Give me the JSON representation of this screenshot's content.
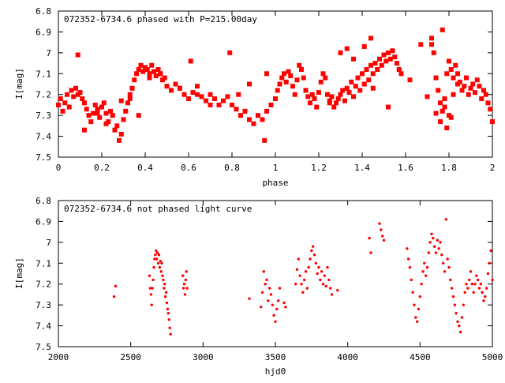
{
  "chart_data": [
    {
      "type": "scatter",
      "title": "072352-6734.6 phased with P=215.00day",
      "xlabel": "phase",
      "ylabel": "I[mag]",
      "xlim": [
        0,
        2
      ],
      "ylim": [
        6.8,
        7.5
      ],
      "y_inverted": true,
      "x_ticks": [
        "0",
        "0.2",
        "0.4",
        "0.6",
        "0.8",
        "1",
        "1.2",
        "1.4",
        "1.6",
        "1.8",
        "2"
      ],
      "y_ticks": [
        "6.8",
        "6.9",
        "7",
        "7.1",
        "7.2",
        "7.3",
        "7.4",
        "7.5"
      ],
      "marker_color": "#ff0000",
      "marker": "filled-square",
      "grid": false,
      "legend": "none",
      "series": [
        {
          "x": [
            0.0,
            0.01,
            0.02,
            0.03,
            0.04,
            0.05,
            0.06,
            0.07,
            0.08,
            0.09,
            0.1,
            0.11,
            0.12,
            0.13,
            0.14,
            0.15,
            0.16,
            0.17,
            0.18,
            0.19,
            0.2,
            0.21,
            0.22,
            0.23,
            0.24,
            0.25,
            0.26,
            0.27,
            0.28,
            0.29,
            0.3,
            0.31,
            0.32,
            0.33,
            0.34,
            0.35,
            0.36,
            0.37,
            0.38,
            0.39,
            0.4,
            0.41,
            0.42,
            0.43,
            0.44,
            0.45,
            0.46,
            0.47,
            0.48,
            0.49,
            0.5,
            0.52,
            0.54,
            0.56,
            0.58,
            0.6,
            0.62,
            0.64,
            0.66,
            0.68,
            0.7,
            0.72,
            0.74,
            0.76,
            0.78,
            0.8,
            0.82,
            0.84,
            0.86,
            0.88,
            0.9,
            0.92,
            0.94,
            0.96,
            0.98,
            0.09,
            0.29,
            0.42,
            0.47,
            0.61,
            0.79,
            0.95,
            0.96,
            0.12,
            0.18,
            0.22,
            0.33,
            0.37,
            0.56,
            0.64,
            0.7,
            0.83,
            0.88
          ],
          "y": [
            7.25,
            7.22,
            7.28,
            7.24,
            7.2,
            7.26,
            7.18,
            7.21,
            7.17,
            7.2,
            7.19,
            7.22,
            7.24,
            7.27,
            7.3,
            7.33,
            7.29,
            7.25,
            7.27,
            7.31,
            7.26,
            7.24,
            7.29,
            7.33,
            7.28,
            7.3,
            7.37,
            7.35,
            7.42,
            7.39,
            7.32,
            7.28,
            7.24,
            7.2,
            7.17,
            7.13,
            7.1,
            7.08,
            7.06,
            7.09,
            7.07,
            7.08,
            7.1,
            7.06,
            7.09,
            7.11,
            7.08,
            7.1,
            7.13,
            7.12,
            7.16,
            7.18,
            7.15,
            7.17,
            7.2,
            7.22,
            7.19,
            7.16,
            7.21,
            7.23,
            7.2,
            7.22,
            7.25,
            7.23,
            7.21,
            7.25,
            7.27,
            7.3,
            7.28,
            7.32,
            7.34,
            7.3,
            7.32,
            7.28,
            7.25,
            7.01,
            7.23,
            7.12,
            7.1,
            7.04,
            7.0,
            7.42,
            7.1,
            7.37,
            7.29,
            7.34,
            7.22,
            7.3,
            7.17,
            7.2,
            7.25,
            7.2,
            7.15
          ]
        },
        {
          "x": [
            1.0,
            1.01,
            1.02,
            1.03,
            1.04,
            1.05,
            1.06,
            1.07,
            1.08,
            1.09,
            1.1,
            1.11,
            1.12,
            1.13,
            1.14,
            1.15,
            1.16,
            1.17,
            1.18,
            1.19,
            1.2,
            1.21,
            1.22,
            1.23,
            1.24,
            1.25,
            1.26,
            1.27,
            1.28,
            1.29,
            1.3,
            1.31,
            1.32,
            1.33,
            1.34,
            1.35,
            1.36,
            1.37,
            1.38,
            1.39,
            1.4,
            1.41,
            1.42,
            1.43,
            1.44,
            1.45,
            1.46,
            1.47,
            1.48,
            1.49,
            1.5,
            1.51,
            1.52,
            1.53,
            1.54,
            1.55,
            1.56,
            1.57,
            1.58,
            1.3,
            1.33,
            1.41,
            1.44,
            1.62,
            1.67,
            1.7,
            1.36,
            1.52,
            1.25,
            1.45
          ],
          "y": [
            7.22,
            7.18,
            7.15,
            7.12,
            7.1,
            7.14,
            7.09,
            7.11,
            7.16,
            7.2,
            7.13,
            7.06,
            7.08,
            7.12,
            7.18,
            7.21,
            7.24,
            7.2,
            7.22,
            7.26,
            7.19,
            7.14,
            7.1,
            7.12,
            7.2,
            7.23,
            7.21,
            7.26,
            7.24,
            7.22,
            7.2,
            7.18,
            7.23,
            7.17,
            7.19,
            7.14,
            7.21,
            7.16,
            7.12,
            7.18,
            7.1,
            7.15,
            7.08,
            7.13,
            7.06,
            7.1,
            7.05,
            7.08,
            7.03,
            7.06,
            7.01,
            7.04,
            7.0,
            7.03,
            6.99,
            7.02,
            7.05,
            7.08,
            7.1,
            7.0,
            6.98,
            6.97,
            6.93,
            7.13,
            6.96,
            7.21,
            7.03,
            7.26,
            7.24,
            7.17
          ]
        },
        {
          "x": [
            1.72,
            1.73,
            1.74,
            1.75,
            1.76,
            1.77,
            1.78,
            1.79,
            1.8,
            1.81,
            1.82,
            1.83,
            1.84,
            1.85,
            1.86,
            1.87,
            1.88,
            1.89,
            1.9,
            1.91,
            1.92,
            1.93,
            1.94,
            1.95,
            1.96,
            1.97,
            1.98,
            1.99,
            2.0,
            1.74,
            1.76,
            1.78,
            1.8,
            1.82,
            1.84,
            1.72,
            1.77,
            1.79,
            1.81
          ],
          "y": [
            6.96,
            7.0,
            7.12,
            7.18,
            7.24,
            7.28,
            7.22,
            7.1,
            7.04,
            7.08,
            7.12,
            7.06,
            7.1,
            7.14,
            7.18,
            7.16,
            7.12,
            7.2,
            7.17,
            7.15,
            7.19,
            7.13,
            7.16,
            7.22,
            7.18,
            7.2,
            7.24,
            7.27,
            7.33,
            7.29,
            7.33,
            7.26,
            7.3,
            7.2,
            7.15,
            6.93,
            6.89,
            7.36,
            7.31
          ]
        }
      ]
    },
    {
      "type": "scatter",
      "title": "072352-6734.6 not phased light curve",
      "xlabel": "hjd0",
      "ylabel": "I[mag]",
      "xlim": [
        2000,
        5000
      ],
      "ylim": [
        6.8,
        7.5
      ],
      "y_inverted": true,
      "x_ticks": [
        "2000",
        "2500",
        "3000",
        "3500",
        "4000",
        "4500",
        "5000"
      ],
      "y_ticks": [
        "6.8",
        "6.9",
        "7",
        "7.1",
        "7.2",
        "7.3",
        "7.4",
        "7.5"
      ],
      "marker_color": "#ff0000",
      "marker": "small-dot",
      "grid": false,
      "legend": "none",
      "series": [
        {
          "x": [
            2385,
            2395,
            2630,
            2635,
            2640,
            2645,
            2650,
            2655,
            2660,
            2665,
            2670,
            2675,
            2680,
            2685,
            2690,
            2695,
            2700,
            2705,
            2710,
            2715,
            2720,
            2725,
            2730,
            2735,
            2740,
            2745,
            2750,
            2755,
            2760,
            2765,
            2770,
            2775,
            2860,
            2865,
            2870,
            2875,
            2880,
            2885,
            2890
          ],
          "y": [
            7.26,
            7.21,
            7.16,
            7.22,
            7.25,
            7.3,
            7.22,
            7.18,
            7.12,
            7.08,
            7.06,
            7.04,
            7.08,
            7.05,
            7.1,
            7.06,
            7.12,
            7.09,
            7.14,
            7.1,
            7.16,
            7.18,
            7.22,
            7.2,
            7.26,
            7.24,
            7.29,
            7.32,
            7.34,
            7.37,
            7.41,
            7.44,
            7.16,
            7.22,
            7.2,
            7.25,
            7.18,
            7.14,
            7.22
          ]
        },
        {
          "x": [
            3320,
            3400,
            3410,
            3420,
            3430,
            3440,
            3450,
            3460,
            3470,
            3480,
            3490,
            3500,
            3510,
            3520,
            3530,
            3560,
            3570,
            3640,
            3650,
            3660,
            3670,
            3680,
            3690,
            3700,
            3710,
            3720,
            3730,
            3740,
            3750,
            3760,
            3770,
            3780,
            3790,
            3800,
            3810,
            3820,
            3830,
            3840,
            3850,
            3860,
            3870,
            3880,
            3890,
            3930
          ],
          "y": [
            7.27,
            7.31,
            7.24,
            7.14,
            7.2,
            7.18,
            7.28,
            7.22,
            7.25,
            7.3,
            7.35,
            7.38,
            7.32,
            7.28,
            7.22,
            7.29,
            7.31,
            7.2,
            7.13,
            7.08,
            7.16,
            7.2,
            7.24,
            7.18,
            7.14,
            7.22,
            7.12,
            7.08,
            7.04,
            7.02,
            7.06,
            7.1,
            7.15,
            7.12,
            7.18,
            7.14,
            7.2,
            7.16,
            7.21,
            7.12,
            7.18,
            7.22,
            7.25,
            7.23
          ]
        },
        {
          "x": [
            4150,
            4160,
            4220,
            4230,
            4240,
            4250,
            4410,
            4420,
            4430,
            4440,
            4450,
            4460,
            4470,
            4480,
            4490,
            4500,
            4510,
            4520,
            4530,
            4540,
            4550,
            4560,
            4570,
            4580,
            4590,
            4600,
            4610,
            4620,
            4630,
            4640,
            4650,
            4660,
            4670,
            4680,
            4690,
            4700,
            4710,
            4720,
            4730,
            4740,
            4750,
            4760,
            4770,
            4780,
            4790,
            4800,
            4810,
            4820,
            4830,
            4840,
            4850,
            4860,
            4870,
            4880,
            4890,
            4900,
            4910,
            4920,
            4930,
            4940,
            4950,
            4960,
            4970,
            4980,
            4990,
            5000
          ],
          "y": [
            6.98,
            7.05,
            6.91,
            6.94,
            6.97,
            6.99,
            7.03,
            7.08,
            7.12,
            7.18,
            7.24,
            7.3,
            7.36,
            7.38,
            7.32,
            7.26,
            7.2,
            7.14,
            7.1,
            7.16,
            7.12,
            7.05,
            7.0,
            6.96,
            6.98,
            7.02,
            7.05,
            6.99,
            7.03,
            7.0,
            7.06,
            7.1,
            7.14,
            6.89,
            7.08,
            7.12,
            7.18,
            7.22,
            7.26,
            7.3,
            7.34,
            7.38,
            7.4,
            7.43,
            7.36,
            7.3,
            7.24,
            7.2,
            7.22,
            7.18,
            7.14,
            7.2,
            7.24,
            7.2,
            7.16,
            7.18,
            7.22,
            7.2,
            7.24,
            7.28,
            7.26,
            7.22,
            7.15,
            7.1,
            7.04,
            7.18
          ]
        }
      ]
    }
  ]
}
